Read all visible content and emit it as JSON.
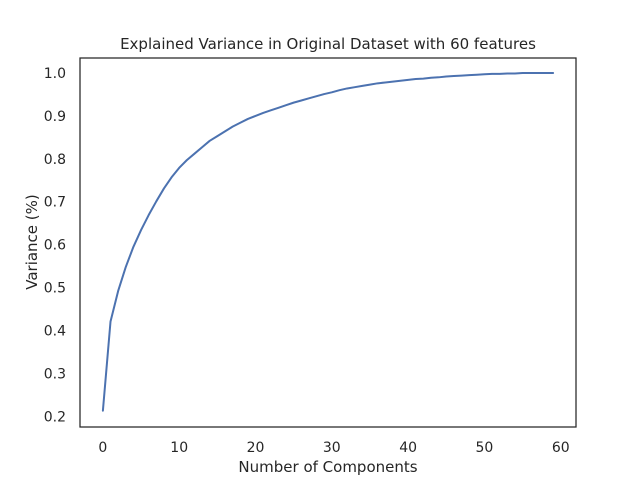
{
  "chart_data": {
    "type": "line",
    "title": "Explained Variance in Original Dataset with 60 features",
    "xlabel": "Number of Components",
    "ylabel": "Variance (%)",
    "xlim": [
      -3,
      62
    ],
    "ylim": [
      0.175,
      1.035
    ],
    "x_ticks": [
      0,
      10,
      20,
      30,
      40,
      50,
      60
    ],
    "y_ticks": [
      0.2,
      0.3,
      0.4,
      0.5,
      0.6,
      0.7,
      0.8,
      0.9,
      1.0
    ],
    "x_tick_labels": [
      "0",
      "10",
      "20",
      "30",
      "40",
      "50",
      "60"
    ],
    "y_tick_labels": [
      "0.2",
      "0.3",
      "0.4",
      "0.5",
      "0.6",
      "0.7",
      "0.8",
      "0.9",
      "1.0"
    ],
    "grid": false,
    "line_color": "#4c72b0",
    "series": [
      {
        "x": [
          0,
          1,
          2,
          3,
          4,
          5,
          6,
          7,
          8,
          9,
          10,
          11,
          12,
          13,
          14,
          15,
          16,
          17,
          18,
          19,
          20,
          21,
          22,
          23,
          24,
          25,
          26,
          27,
          28,
          29,
          30,
          31,
          32,
          33,
          34,
          35,
          36,
          37,
          38,
          39,
          40,
          41,
          42,
          43,
          44,
          45,
          46,
          47,
          48,
          49,
          50,
          51,
          52,
          53,
          54,
          55,
          56,
          57,
          58,
          59
        ],
        "values": [
          0.213,
          0.421,
          0.492,
          0.548,
          0.595,
          0.634,
          0.669,
          0.701,
          0.731,
          0.757,
          0.779,
          0.797,
          0.812,
          0.827,
          0.842,
          0.853,
          0.864,
          0.875,
          0.884,
          0.893,
          0.9,
          0.907,
          0.913,
          0.919,
          0.925,
          0.931,
          0.936,
          0.941,
          0.946,
          0.951,
          0.955,
          0.96,
          0.964,
          0.967,
          0.97,
          0.973,
          0.976,
          0.978,
          0.98,
          0.982,
          0.984,
          0.986,
          0.987,
          0.989,
          0.99,
          0.992,
          0.993,
          0.994,
          0.995,
          0.996,
          0.997,
          0.998,
          0.998,
          0.999,
          0.999,
          1.0,
          1.0,
          1.0,
          1.0,
          1.0
        ]
      }
    ]
  }
}
